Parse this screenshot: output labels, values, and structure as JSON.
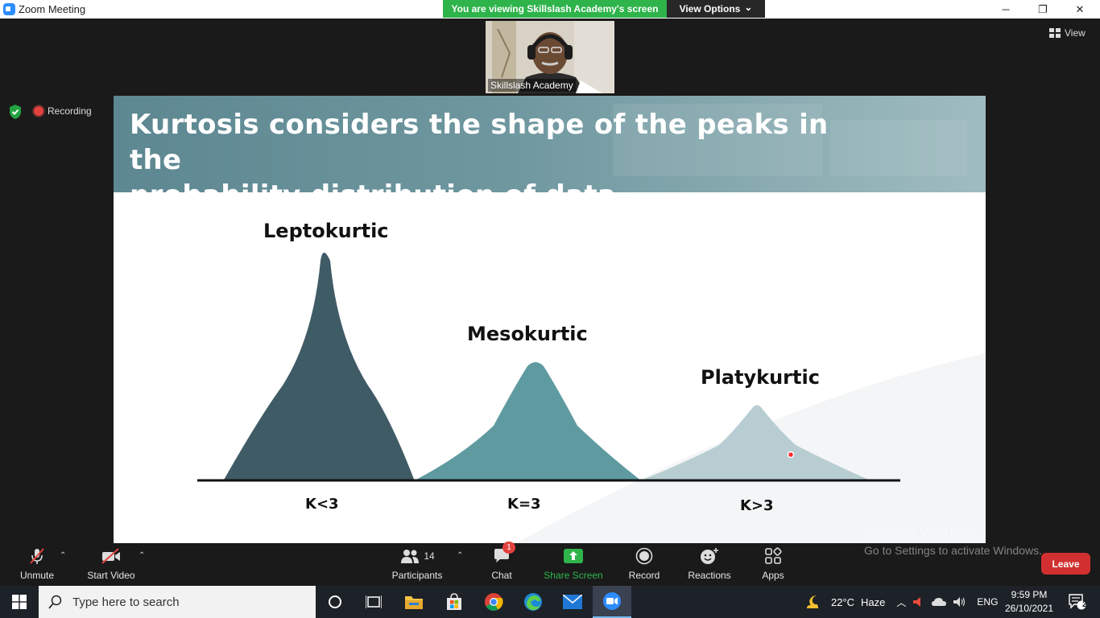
{
  "window": {
    "title": "Zoom Meeting",
    "minimize": "─",
    "restore": "❐",
    "close": "✕"
  },
  "share_banner": {
    "status": "You are viewing Skillslash Academy's screen",
    "options_label": "View Options",
    "options_caret": "⌄"
  },
  "participant_video": {
    "name": "Skillslash Academy"
  },
  "view_button": {
    "label": "View"
  },
  "recording": {
    "label": "Recording"
  },
  "slide": {
    "title_line1": "Kurtosis considers the shape of the peaks in the",
    "title_line2": "probability distribution of data...",
    "curves": [
      {
        "name": "Leptokurtic",
        "k": "K<3",
        "color": "#3f5b66"
      },
      {
        "name": "Mesokurtic",
        "k": "K=3",
        "color": "#5f9aa1"
      },
      {
        "name": "Platykurtic",
        "k": "K>3",
        "color": "#b7cdd2"
      }
    ]
  },
  "watermark": {
    "line1": "Activate Windows",
    "line2": "Go to Settings to activate Windows."
  },
  "toolbar": {
    "unmute": "Unmute",
    "start_video": "Start Video",
    "participants": "Participants",
    "participants_count": "14",
    "chat": "Chat",
    "chat_badge": "1",
    "share_screen": "Share Screen",
    "record": "Record",
    "reactions": "Reactions",
    "apps": "Apps",
    "leave": "Leave",
    "share_color": "#2eb44b",
    "leave_color": "#d23030"
  },
  "taskbar": {
    "search_placeholder": "Type here to search",
    "weather_temp": "22°C",
    "weather_desc": "Haze",
    "language": "ENG",
    "time": "9:59 PM",
    "date": "26/10/2021",
    "notification_count": "2"
  }
}
